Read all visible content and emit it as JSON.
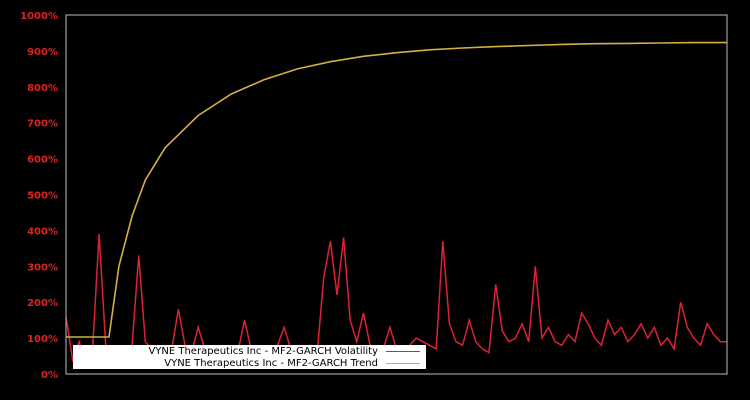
{
  "chart_data": {
    "type": "line",
    "title": "",
    "xlabel": "",
    "ylabel": "",
    "ylim": [
      0,
      1000
    ],
    "y_ticks": [
      "0%",
      "100%",
      "200%",
      "300%",
      "400%",
      "500%",
      "600%",
      "700%",
      "800%",
      "900%",
      "1000%"
    ],
    "x_ticks": [],
    "grid": false,
    "legend_position": "lower left",
    "colors": {
      "background": "#000000",
      "volatility": "#dd2233",
      "trend": "#d4b040",
      "axis": "#bbbbbb",
      "tick_label": "#dd2222"
    },
    "series": [
      {
        "name": "VYNE Therapeutics Inc - MF2-GARCH Volatility",
        "color": "#dd2233",
        "x": [
          0,
          1,
          2,
          3,
          4,
          5,
          6,
          7,
          8,
          9,
          10,
          11,
          12,
          13,
          14,
          15,
          16,
          17,
          18,
          19,
          20,
          21,
          22,
          23,
          24,
          25,
          26,
          27,
          28,
          29,
          30,
          31,
          32,
          33,
          34,
          35,
          36,
          37,
          38,
          39,
          40,
          41,
          42,
          43,
          44,
          45,
          46,
          47,
          48,
          49,
          50,
          51,
          52,
          53,
          54,
          55,
          56,
          57,
          58,
          59,
          60,
          61,
          62,
          63,
          64,
          65,
          66,
          67,
          68,
          69,
          70,
          71,
          72,
          73,
          74,
          75,
          76,
          77,
          78,
          79,
          80,
          81,
          82,
          83,
          84,
          85,
          86,
          87,
          88,
          89,
          90,
          91,
          92,
          93,
          94,
          95,
          96,
          97,
          98,
          99,
          100
        ],
        "values": [
          160,
          40,
          90,
          30,
          60,
          390,
          80,
          70,
          60,
          50,
          80,
          330,
          90,
          70,
          60,
          50,
          70,
          180,
          80,
          60,
          130,
          70,
          60,
          55,
          60,
          60,
          60,
          150,
          70,
          60,
          60,
          65,
          80,
          130,
          70,
          60,
          70,
          80,
          60,
          270,
          370,
          220,
          380,
          150,
          90,
          170,
          80,
          60,
          70,
          130,
          70,
          60,
          80,
          100,
          90,
          80,
          70,
          370,
          140,
          90,
          80,
          150,
          90,
          70,
          60,
          250,
          120,
          90,
          100,
          140,
          90,
          300,
          100,
          130,
          90,
          80,
          110,
          90,
          170,
          140,
          100,
          80,
          150,
          110,
          130,
          90,
          110,
          140,
          100,
          130,
          80,
          100,
          70,
          200,
          130,
          100,
          80,
          140,
          110,
          90,
          90
        ]
      },
      {
        "name": "VYNE Therapeutics Inc - MF2-GARCH Trend",
        "color": "#d4b040",
        "x": [
          0,
          6,
          6.5,
          8,
          10,
          12,
          15,
          20,
          25,
          30,
          35,
          40,
          45,
          50,
          55,
          60,
          65,
          70,
          75,
          80,
          85,
          90,
          95,
          100
        ],
        "values": [
          103,
          103,
          103,
          300,
          440,
          540,
          630,
          720,
          780,
          820,
          850,
          870,
          885,
          895,
          903,
          908,
          912,
          915,
          918,
          920,
          921,
          922,
          923,
          923
        ]
      }
    ]
  },
  "legend": {
    "items": [
      {
        "label": "VYNE Therapeutics Inc - MF2-GARCH Volatility",
        "color": "#dd2233"
      },
      {
        "label": "VYNE Therapeutics Inc - MF2-GARCH Trend",
        "color": "#d4b040"
      }
    ]
  }
}
